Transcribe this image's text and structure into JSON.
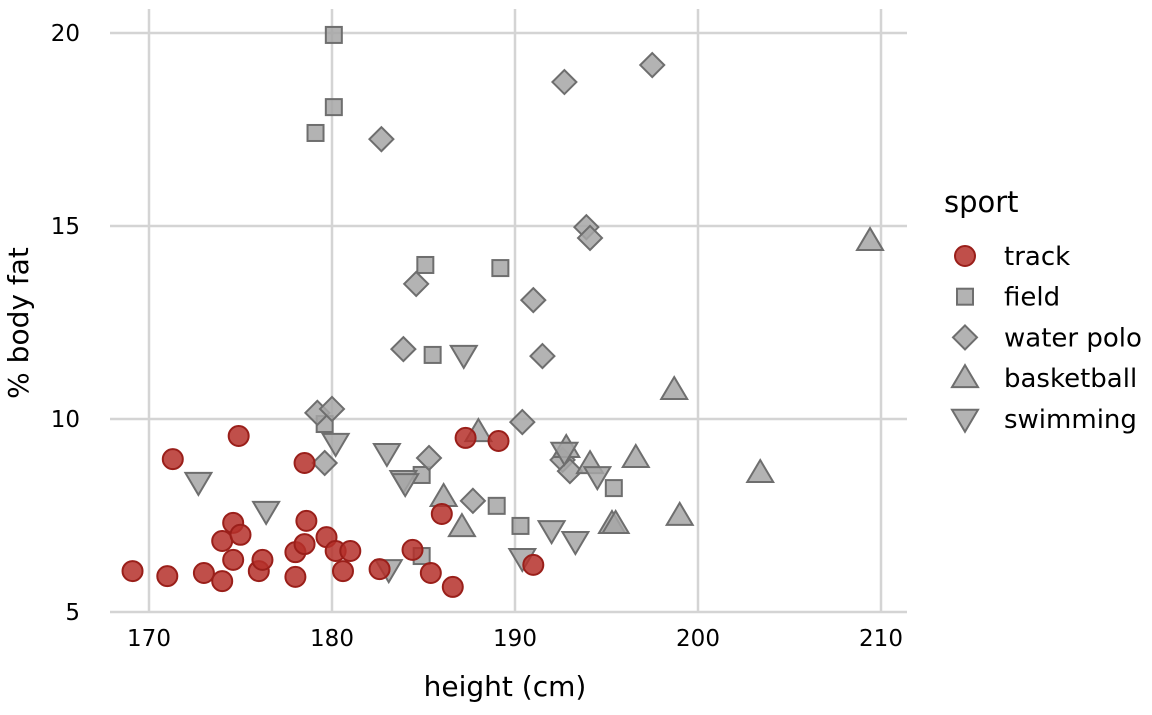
{
  "chart_data": {
    "type": "scatter",
    "xlabel": "height (cm)",
    "ylabel": "% body fat",
    "xlim": [
      167.9,
      211.5
    ],
    "ylim": [
      5,
      20.1
    ],
    "xticks": [
      170,
      180,
      190,
      200,
      210
    ],
    "yticks": [
      5,
      10,
      15,
      20
    ],
    "grid": true,
    "legend": {
      "title": "sport",
      "position": "right"
    },
    "series": [
      {
        "name": "track",
        "shape": "circle",
        "color": "#b5302a",
        "points": [
          [
            169.1,
            6.06
          ],
          [
            171.0,
            5.93
          ],
          [
            171.3,
            8.96
          ],
          [
            173.0,
            6.01
          ],
          [
            174.0,
            6.84
          ],
          [
            174.0,
            5.8
          ],
          [
            174.6,
            7.31
          ],
          [
            174.6,
            6.35
          ],
          [
            174.9,
            9.56
          ],
          [
            175.0,
            7.0
          ],
          [
            176.0,
            6.06
          ],
          [
            176.2,
            6.35
          ],
          [
            178.0,
            5.91
          ],
          [
            178.0,
            6.55
          ],
          [
            178.5,
            8.86
          ],
          [
            178.5,
            6.76
          ],
          [
            178.6,
            7.36
          ],
          [
            179.7,
            6.94
          ],
          [
            180.2,
            6.58
          ],
          [
            180.6,
            6.06
          ],
          [
            181.0,
            6.58
          ],
          [
            182.6,
            6.11
          ],
          [
            184.4,
            6.61
          ],
          [
            185.4,
            6.01
          ],
          [
            186.0,
            7.54
          ],
          [
            186.6,
            5.65
          ],
          [
            187.3,
            9.51
          ],
          [
            189.1,
            9.43
          ],
          [
            191.0,
            6.22
          ]
        ]
      },
      {
        "name": "field",
        "shape": "square",
        "color": "#a6a6a6",
        "points": [
          [
            180.1,
            19.95
          ],
          [
            180.1,
            18.08
          ],
          [
            179.1,
            17.41
          ],
          [
            185.1,
            13.99
          ],
          [
            189.2,
            13.91
          ],
          [
            185.5,
            11.66
          ],
          [
            179.6,
            9.87
          ],
          [
            184.9,
            8.55
          ],
          [
            189.0,
            7.75
          ],
          [
            195.4,
            8.21
          ],
          [
            190.3,
            7.23
          ],
          [
            184.9,
            6.45
          ]
        ]
      },
      {
        "name": "water polo",
        "shape": "diamond",
        "color": "#a6a6a6",
        "points": [
          [
            192.7,
            18.73
          ],
          [
            197.5,
            19.17
          ],
          [
            182.7,
            17.25
          ],
          [
            193.9,
            14.97
          ],
          [
            194.1,
            14.69
          ],
          [
            184.6,
            13.5
          ],
          [
            191.0,
            13.08
          ],
          [
            183.9,
            11.81
          ],
          [
            191.5,
            11.63
          ],
          [
            179.2,
            10.16
          ],
          [
            180.0,
            10.26
          ],
          [
            190.4,
            9.92
          ],
          [
            179.6,
            8.86
          ],
          [
            185.3,
            8.99
          ],
          [
            187.7,
            7.88
          ],
          [
            192.6,
            8.94
          ],
          [
            193.0,
            8.65
          ]
        ]
      },
      {
        "name": "basketball",
        "shape": "triangle-up",
        "color": "#a6a6a6",
        "points": [
          [
            209.4,
            14.61
          ],
          [
            198.7,
            10.75
          ],
          [
            188.0,
            9.66
          ],
          [
            196.6,
            8.99
          ],
          [
            203.4,
            8.6
          ],
          [
            194.1,
            8.83
          ],
          [
            186.1,
            7.98
          ],
          [
            187.1,
            7.2
          ],
          [
            199.0,
            7.49
          ],
          [
            195.3,
            7.28
          ],
          [
            195.5,
            7.28
          ],
          [
            192.8,
            9.25
          ]
        ]
      },
      {
        "name": "swimming",
        "shape": "triangle-down",
        "color": "#a6a6a6",
        "points": [
          [
            172.7,
            8.37
          ],
          [
            176.4,
            7.62
          ],
          [
            180.2,
            9.38
          ],
          [
            183.0,
            9.12
          ],
          [
            183.9,
            8.42
          ],
          [
            184.0,
            8.34
          ],
          [
            187.2,
            11.66
          ],
          [
            190.4,
            6.4
          ],
          [
            192.0,
            7.12
          ],
          [
            193.3,
            6.84
          ],
          [
            192.7,
            9.15
          ],
          [
            194.5,
            8.52
          ],
          [
            183.1,
            6.11
          ]
        ]
      }
    ]
  }
}
